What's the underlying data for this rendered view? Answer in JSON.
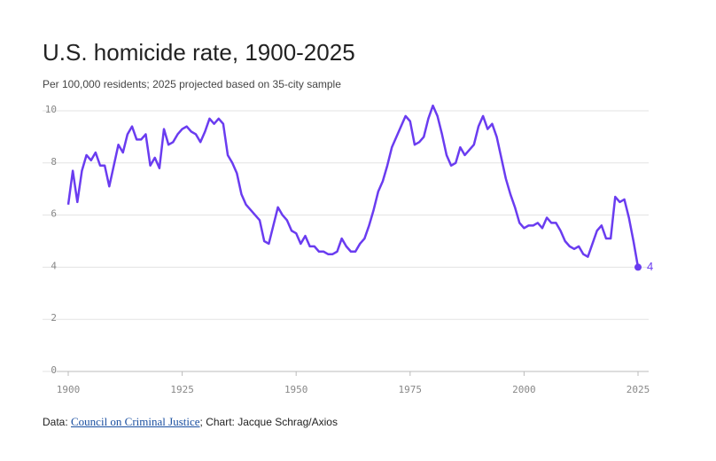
{
  "chart_data": {
    "type": "line",
    "title": "U.S. homicide rate, 1900-2025",
    "subtitle": "Per 100,000 residents; 2025 projected based on 35-city sample",
    "source": {
      "prefix": "Data: ",
      "link": "Council on Criminal Justice",
      "suffix": "; Chart: Jacque Schrag/Axios"
    },
    "x": [
      1900,
      1901,
      1902,
      1903,
      1904,
      1905,
      1906,
      1907,
      1908,
      1909,
      1910,
      1911,
      1912,
      1913,
      1914,
      1915,
      1916,
      1917,
      1918,
      1919,
      1920,
      1921,
      1922,
      1923,
      1924,
      1925,
      1926,
      1927,
      1928,
      1929,
      1930,
      1931,
      1932,
      1933,
      1934,
      1935,
      1936,
      1937,
      1938,
      1939,
      1940,
      1941,
      1942,
      1943,
      1944,
      1945,
      1946,
      1947,
      1948,
      1949,
      1950,
      1951,
      1952,
      1953,
      1954,
      1955,
      1956,
      1957,
      1958,
      1959,
      1960,
      1961,
      1962,
      1963,
      1964,
      1965,
      1966,
      1967,
      1968,
      1969,
      1970,
      1971,
      1972,
      1973,
      1974,
      1975,
      1976,
      1977,
      1978,
      1979,
      1980,
      1981,
      1982,
      1983,
      1984,
      1985,
      1986,
      1987,
      1988,
      1989,
      1990,
      1991,
      1992,
      1993,
      1994,
      1995,
      1996,
      1997,
      1998,
      1999,
      2000,
      2001,
      2002,
      2003,
      2004,
      2005,
      2006,
      2007,
      2008,
      2009,
      2010,
      2011,
      2012,
      2013,
      2014,
      2015,
      2016,
      2017,
      2018,
      2019,
      2020,
      2021,
      2022,
      2023,
      2024,
      2025
    ],
    "values": [
      6.4,
      7.7,
      6.5,
      7.7,
      8.3,
      8.1,
      8.4,
      7.9,
      7.9,
      7.1,
      7.9,
      8.7,
      8.4,
      9.1,
      9.4,
      8.9,
      8.9,
      9.1,
      7.9,
      8.2,
      7.8,
      9.3,
      8.7,
      8.8,
      9.1,
      9.3,
      9.4,
      9.2,
      9.1,
      8.8,
      9.2,
      9.7,
      9.5,
      9.7,
      9.5,
      8.3,
      8.0,
      7.6,
      6.8,
      6.4,
      6.2,
      6.0,
      5.8,
      5.0,
      4.9,
      5.6,
      6.3,
      6.0,
      5.8,
      5.4,
      5.3,
      4.9,
      5.2,
      4.8,
      4.8,
      4.6,
      4.6,
      4.5,
      4.5,
      4.6,
      5.1,
      4.8,
      4.6,
      4.6,
      4.9,
      5.1,
      5.6,
      6.2,
      6.9,
      7.3,
      7.9,
      8.6,
      9.0,
      9.4,
      9.8,
      9.6,
      8.7,
      8.8,
      9.0,
      9.7,
      10.2,
      9.8,
      9.1,
      8.3,
      7.9,
      8.0,
      8.6,
      8.3,
      8.5,
      8.7,
      9.4,
      9.8,
      9.3,
      9.5,
      9.0,
      8.2,
      7.4,
      6.8,
      6.3,
      5.7,
      5.5,
      5.6,
      5.6,
      5.7,
      5.5,
      5.9,
      5.7,
      5.7,
      5.4,
      5.0,
      4.8,
      4.7,
      4.8,
      4.5,
      4.4,
      4.9,
      5.4,
      5.6,
      5.1,
      5.1,
      6.7,
      6.5,
      6.6,
      5.9,
      5.0,
      4
    ],
    "color": "#6a3cf0",
    "xlim": [
      1900,
      2025
    ],
    "xticks": [
      1900,
      1925,
      1950,
      1975,
      2000,
      2025
    ],
    "ylim": [
      0,
      10
    ],
    "yticks": [
      0,
      2,
      4,
      6,
      8,
      10
    ],
    "grid": true
  }
}
